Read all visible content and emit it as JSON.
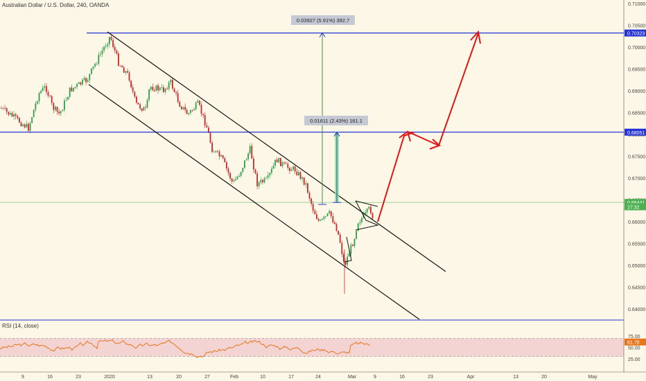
{
  "chart_title": "Australian Dollar / U.S. Dollar, 240, OANDA",
  "rsi_title": "RSI (14, close)",
  "chart_data": {
    "type": "candlestick",
    "title": "Australian Dollar / U.S. Dollar, 240, OANDA",
    "y_ticks": [
      "0.71000",
      "0.70500",
      "0.70000",
      "0.69500",
      "0.69000",
      "0.68500",
      "0.68000",
      "0.67500",
      "0.67000",
      "0.66500",
      "0.66000",
      "0.65500",
      "0.65000",
      "0.64500",
      "0.64000"
    ],
    "x_ticks": [
      "9",
      "16",
      "23",
      "2020",
      "13",
      "20",
      "27",
      "Feb",
      "10",
      "17",
      "24",
      "Mar",
      "9",
      "16",
      "23",
      "Apr",
      "13",
      "20",
      "May"
    ],
    "price_labels": [
      {
        "label": "0.70323",
        "value": 0.70323,
        "color": "#2433d6"
      },
      {
        "label": "0.68051",
        "value": 0.68051,
        "color": "#2433d6"
      },
      {
        "label": "0.66441",
        "value": 0.66441,
        "color": "#4caf50"
      },
      {
        "label": "27:32",
        "value": 0.66341,
        "color": "#4caf50"
      }
    ],
    "horizontal_levels": [
      0.70323,
      0.68051
    ],
    "current_price": 0.66441,
    "measurements": [
      {
        "label": "0.03927 (5.91%) 392.7",
        "from": 0.66396,
        "to": 0.70323
      },
      {
        "label": "0.01611 (2.43%) 161.1",
        "from": 0.6644,
        "to": 0.68051
      }
    ],
    "rsi": {
      "ticks": [
        "75.00",
        "50.00",
        "25.00"
      ],
      "overbought": 70,
      "oversold": 30,
      "current": 61.78,
      "current_label": "61.78"
    }
  }
}
